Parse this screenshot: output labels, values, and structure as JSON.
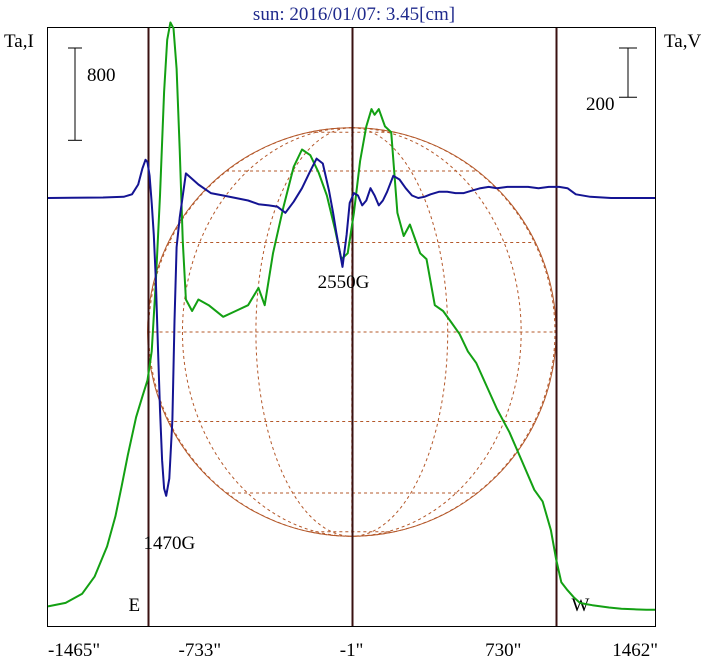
{
  "chart_data": {
    "type": "line",
    "title": "sun: 2016/01/07: 3.45[cm]",
    "left_axis_label": "Ta,I",
    "right_axis_label": "Ta,V",
    "x_ticks": [
      "-1465\"",
      "-733\"",
      "-1\"",
      "730\"",
      "1462\""
    ],
    "x_tick_values": [
      -1465,
      -733,
      -1,
      730,
      1462
    ],
    "xlim": [
      -1465,
      1462
    ],
    "scale_bars": [
      {
        "axis": "I",
        "label": "800",
        "value": 800
      },
      {
        "axis": "V",
        "label": "200",
        "value": 200
      }
    ],
    "limb_markers": [
      {
        "label": "E",
        "x": -985
      },
      {
        "label": "W",
        "x": 985
      }
    ],
    "center_line_x": 0,
    "annotations": [
      {
        "text": "1470G",
        "x": -880
      },
      {
        "text": "2550G",
        "x": -40
      }
    ],
    "colors": {
      "intensity": "#13a013",
      "polarization": "#141493",
      "limb_lines": "#3a1010",
      "solar_grid": "#b4582a",
      "title": "#1f2a8c"
    },
    "series": [
      {
        "name": "Ta,I",
        "x": [
          -1465,
          -1380,
          -1300,
          -1240,
          -1180,
          -1140,
          -1110,
          -1080,
          -1040,
          -1010,
          -985,
          -965,
          -945,
          -925,
          -905,
          -890,
          -875,
          -860,
          -845,
          -830,
          -815,
          -800,
          -770,
          -740,
          -690,
          -620,
          -560,
          -500,
          -450,
          -420,
          -380,
          -330,
          -280,
          -240,
          -200,
          -160,
          -120,
          -80,
          -50,
          -20,
          10,
          40,
          70,
          95,
          110,
          130,
          160,
          190,
          220,
          250,
          280,
          300,
          330,
          360,
          400,
          440,
          480,
          520,
          560,
          600,
          650,
          700,
          760,
          820,
          880,
          920,
          960,
          985,
          1010,
          1040,
          1070,
          1100,
          1130,
          1160,
          1200,
          1240,
          1300,
          1360,
          1420,
          1462
        ],
        "y": [
          40,
          70,
          150,
          300,
          560,
          820,
          1080,
          1350,
          1680,
          1860,
          2000,
          2250,
          2850,
          3600,
          4500,
          4950,
          5100,
          5050,
          4700,
          4000,
          3200,
          2700,
          2600,
          2700,
          2650,
          2550,
          2600,
          2650,
          2800,
          2650,
          3100,
          3500,
          3850,
          4000,
          3950,
          3800,
          3600,
          3300,
          3050,
          3100,
          3450,
          3900,
          4200,
          4350,
          4300,
          4350,
          4200,
          4150,
          3450,
          3250,
          3350,
          3250,
          3100,
          3050,
          2650,
          2600,
          2500,
          2400,
          2250,
          2150,
          1950,
          1750,
          1550,
          1300,
          1050,
          950,
          700,
          450,
          250,
          180,
          120,
          70,
          60,
          50,
          40,
          30,
          20,
          15,
          10,
          10
        ]
      },
      {
        "name": "Ta,V",
        "x": [
          -1465,
          -1350,
          -1200,
          -1100,
          -1060,
          -1030,
          -1010,
          -995,
          -985,
          -975,
          -965,
          -955,
          -945,
          -935,
          -925,
          -915,
          -905,
          -895,
          -880,
          -865,
          -855,
          -845,
          -830,
          -800,
          -740,
          -680,
          -620,
          -560,
          -500,
          -450,
          -400,
          -360,
          -320,
          -280,
          -240,
          -200,
          -170,
          -140,
          -110,
          -90,
          -75,
          -60,
          -45,
          -25,
          -10,
          10,
          30,
          50,
          70,
          90,
          110,
          130,
          150,
          170,
          200,
          230,
          260,
          290,
          320,
          350,
          380,
          420,
          460,
          500,
          540,
          580,
          620,
          660,
          700,
          750,
          800,
          850,
          900,
          950,
          1000,
          1040,
          1080,
          1150,
          1250,
          1350,
          1462
        ],
        "y": [
          0,
          1,
          2,
          5,
          15,
          55,
          120,
          155,
          145,
          90,
          -20,
          -150,
          -330,
          -600,
          -860,
          -1065,
          -1180,
          -1210,
          -1140,
          -900,
          -500,
          -200,
          -80,
          100,
          55,
          20,
          10,
          0,
          -10,
          -25,
          -30,
          -35,
          -60,
          -15,
          40,
          110,
          160,
          140,
          30,
          -60,
          -140,
          -210,
          -280,
          -150,
          -20,
          20,
          10,
          -30,
          -10,
          40,
          10,
          -30,
          -10,
          25,
          90,
          75,
          40,
          10,
          0,
          5,
          15,
          25,
          25,
          20,
          20,
          30,
          40,
          45,
          40,
          45,
          45,
          45,
          40,
          45,
          45,
          40,
          15,
          5,
          0,
          0,
          0
        ]
      }
    ]
  }
}
